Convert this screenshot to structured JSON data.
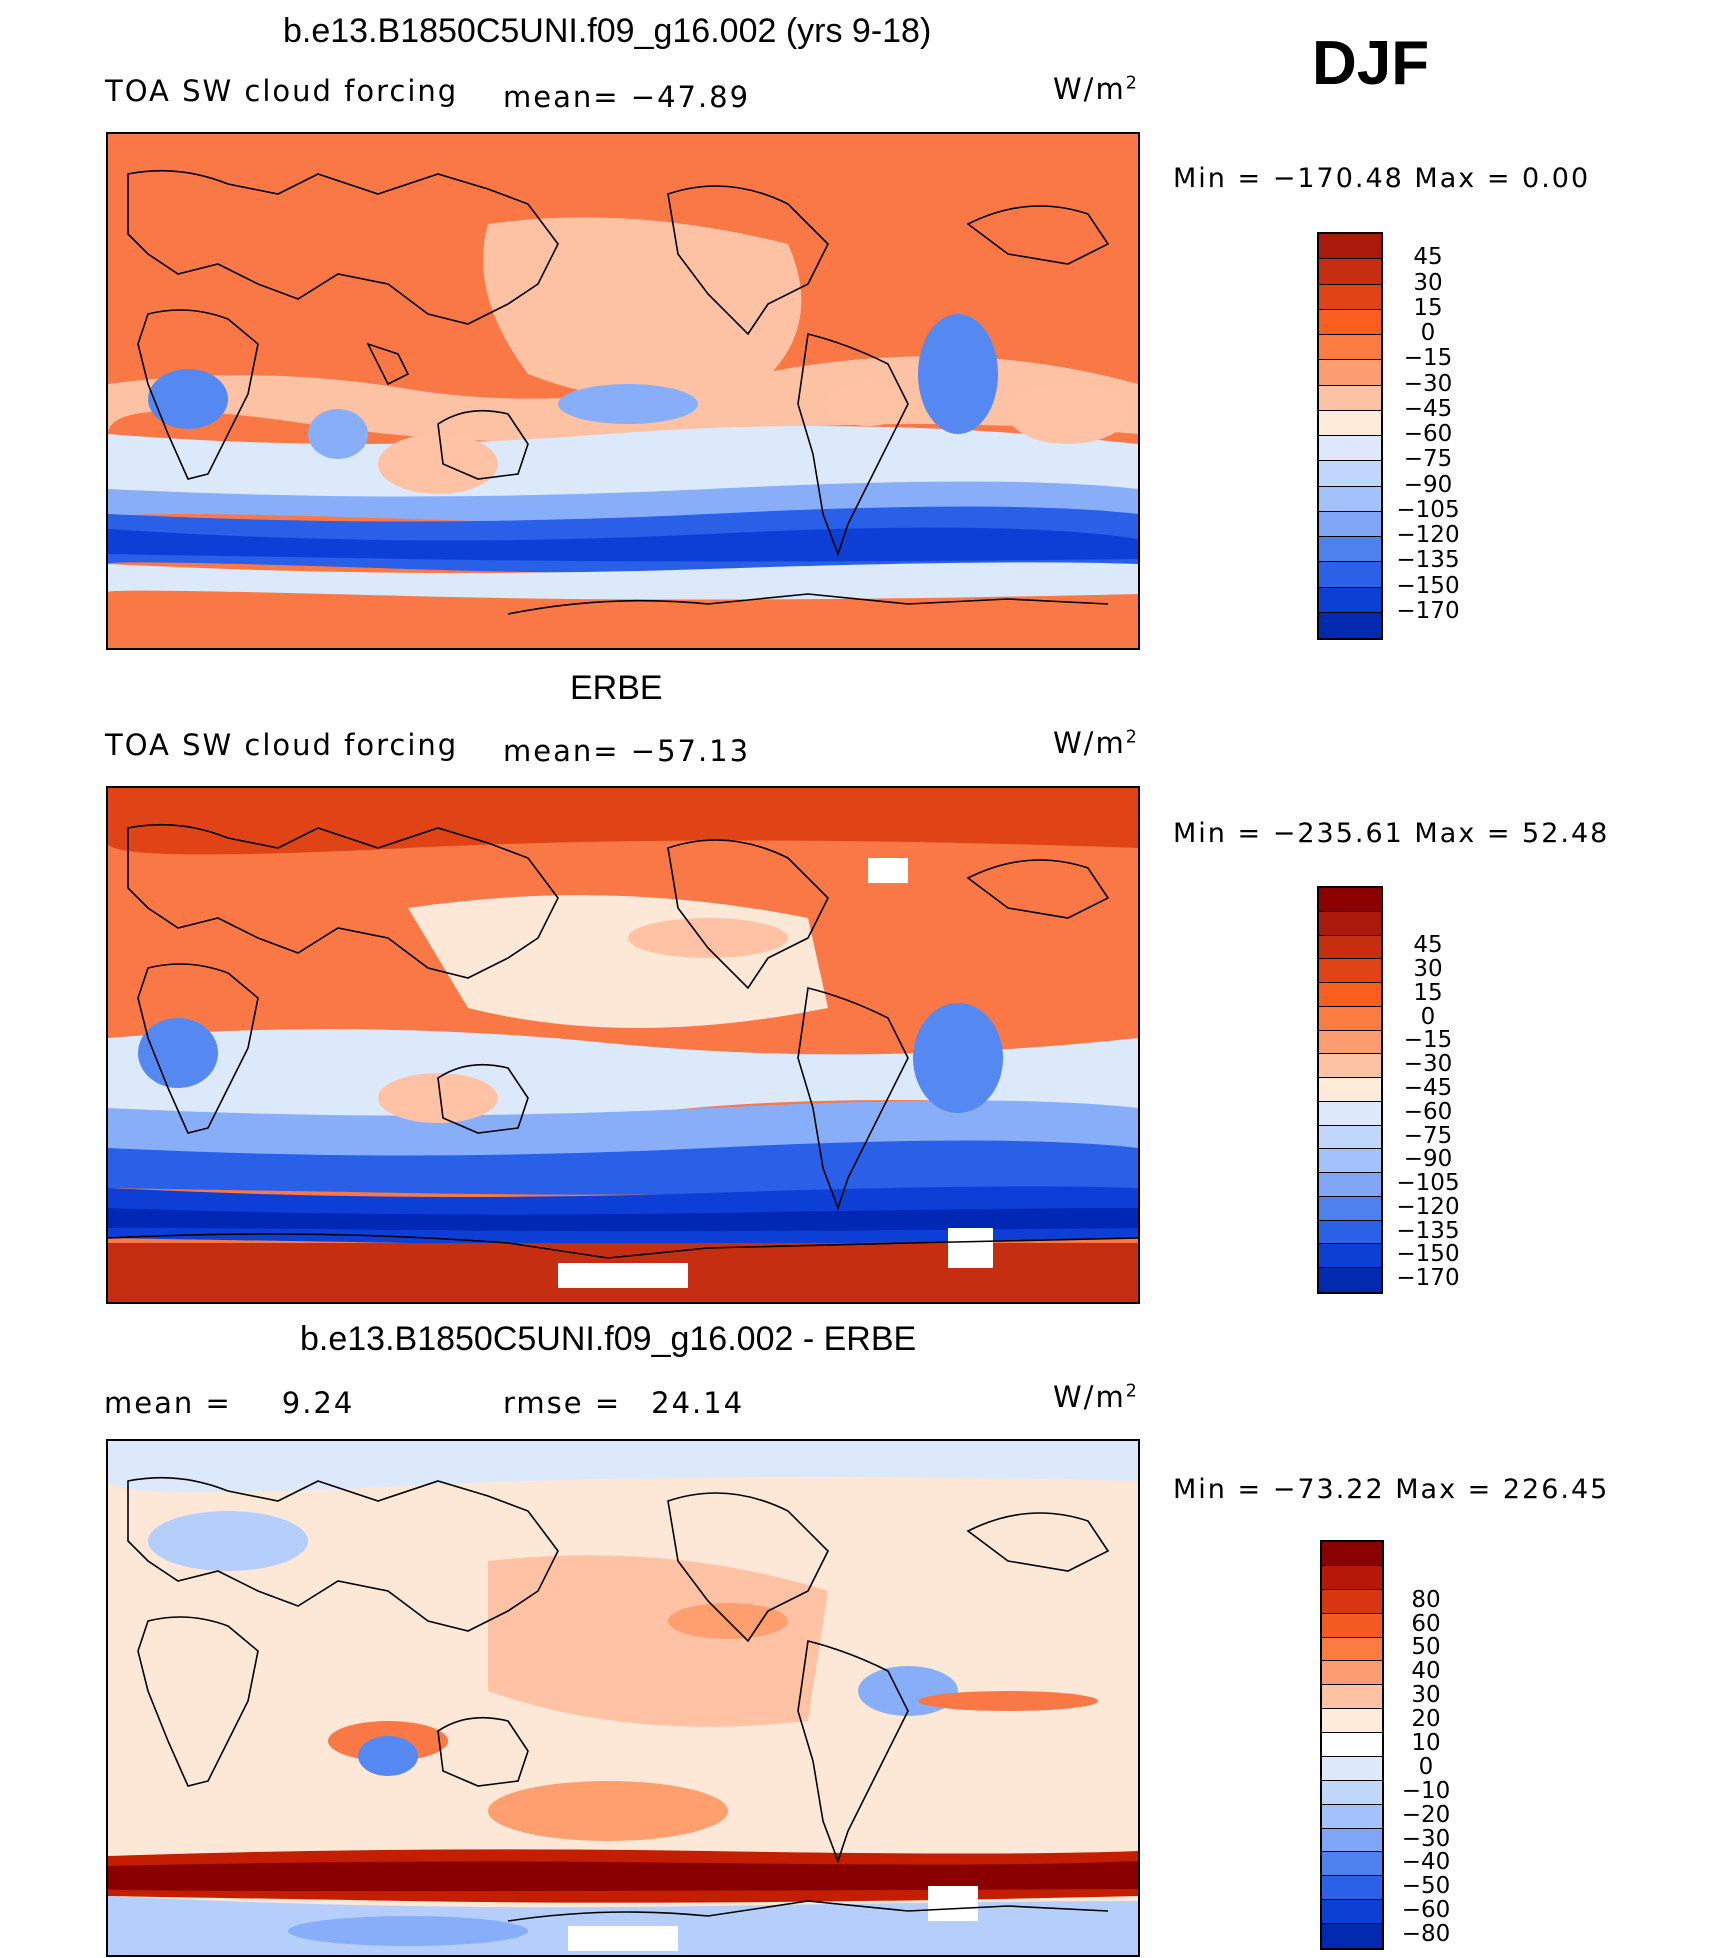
{
  "season": "DJF",
  "units": "W/m",
  "units_sup": "2",
  "colors": {
    "plot_scale": [
      "#fa7845",
      "#ff9e6e",
      "#ffc2a5",
      "#fde8d8",
      "#dce9fb",
      "#b5cefc",
      "#88aefa",
      "#5588f0",
      "#2a5fe8",
      "#0d3fd6",
      "#0028b4",
      "#00127e"
    ],
    "diff_scale": [
      "#fde8d8",
      "#ffc2a5",
      "#ff9e6e",
      "#dce9fb",
      "#b5cefc",
      "#88aefa",
      "#5588f0",
      "#2a5fe8",
      "#8a0000",
      "#c31e00"
    ]
  },
  "panels": [
    {
      "title": "b.e13.B1850C5UNI.f09_g16.002 (yrs 9-18)",
      "left_label": "TOA SW cloud forcing",
      "stat_label": "mean=",
      "stat_value": "−47.89",
      "min_label": "Min",
      "min_value": "−170.48",
      "max_label": "Max",
      "max_value": "0.00",
      "colorbar": {
        "levels": [
          "45",
          "30",
          "15",
          "0",
          "−15",
          "−30",
          "−45",
          "−60",
          "−75",
          "−90",
          "−105",
          "−120",
          "−135",
          "−150",
          "−170"
        ],
        "colors": [
          "#aa1a0b",
          "#c52e10",
          "#e04316",
          "#fa5e1e",
          "#fb7b40",
          "#fc9d71",
          "#fdc2a3",
          "#feebd9",
          "#dde9fa",
          "#c1d6fb",
          "#a3c1fb",
          "#7fa6f7",
          "#4e80ee",
          "#2b61e6",
          "#0c3fd3",
          "#022ab0"
        ]
      }
    },
    {
      "title": "ERBE",
      "left_label": "TOA SW cloud forcing",
      "stat_label": "mean=",
      "stat_value": "−57.13",
      "min_label": "Min",
      "min_value": "−235.61",
      "max_label": "Max",
      "max_value": "52.48",
      "colorbar": {
        "levels": [
          "45",
          "30",
          "15",
          "0",
          "−15",
          "−30",
          "−45",
          "−60",
          "−75",
          "−90",
          "−105",
          "−120",
          "−135",
          "−150",
          "−170"
        ],
        "colors": [
          "#8b0000",
          "#aa1a0b",
          "#c52e10",
          "#e04316",
          "#fa5e1e",
          "#fb7b40",
          "#fc9d71",
          "#fdc2a3",
          "#feebd9",
          "#dde9fa",
          "#c1d6fb",
          "#a3c1fb",
          "#7fa6f7",
          "#4e80ee",
          "#2b61e6",
          "#0c3fd3",
          "#022ab0"
        ]
      }
    },
    {
      "title": "b.e13.B1850C5UNI.f09_g16.002 - ERBE",
      "left_label": "mean =",
      "left_value": "9.24",
      "stat_label": "rmse =",
      "stat_value": "24.14",
      "min_label": "Min",
      "min_value": "−73.22",
      "max_label": "Max",
      "max_value": "226.45",
      "colorbar": {
        "levels": [
          "80",
          "60",
          "50",
          "40",
          "30",
          "20",
          "10",
          "0",
          "−10",
          "−20",
          "−30",
          "−40",
          "−50",
          "−60",
          "−80"
        ],
        "colors": [
          "#8b0000",
          "#b51708",
          "#d83513",
          "#f25a22",
          "#fb7b40",
          "#fc9d71",
          "#fdc2a3",
          "#feebd9",
          "#ffffff",
          "#dde9fa",
          "#c1d6fb",
          "#a3c1fb",
          "#7fa6f7",
          "#4e80ee",
          "#2b61e6",
          "#0c3fd3",
          "#022ab0"
        ]
      }
    }
  ]
}
